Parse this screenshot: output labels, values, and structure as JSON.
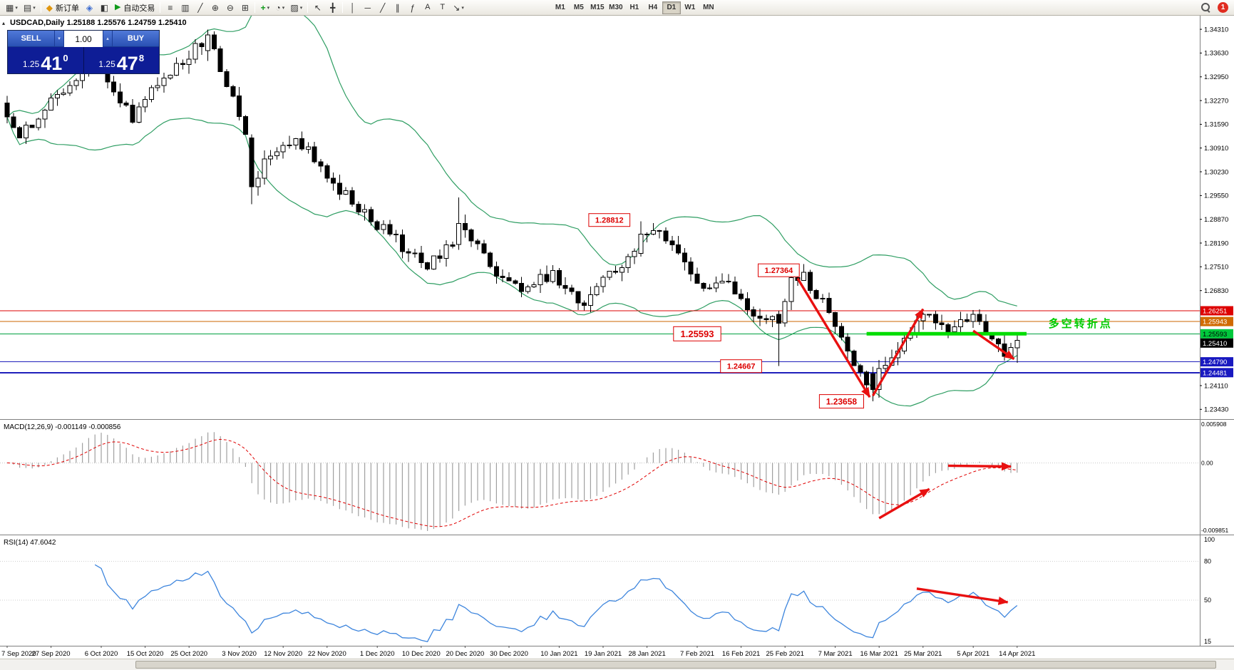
{
  "toolbar": {
    "new_order_label": "新订单",
    "autotrading_label": "自动交易",
    "timeframes": [
      "M1",
      "M5",
      "M15",
      "M30",
      "H1",
      "H4",
      "D1",
      "W1",
      "MN"
    ],
    "active_timeframe": "D1",
    "notification_count": "1",
    "icon_glyphs": {
      "new_chart": "▦",
      "caret": "▾",
      "caret_up": "▴",
      "profile": "▤",
      "market_watch": "◧",
      "new_order": "◆",
      "expert": "◈",
      "play": "▶",
      "bars": "≡",
      "candles": "▥",
      "line_chart": "╱",
      "zoom_in": "⊕",
      "zoom_out": "⊖",
      "tile": "⊞",
      "indicators": "+",
      "clock": "◔",
      "template": "▨",
      "cursor": "↖",
      "crosshair": "╋",
      "vline": "│",
      "hline": "─",
      "trend": "╱",
      "channel": "∥",
      "fib": "ƒ",
      "text": "A",
      "label": "T",
      "arrow": "↘"
    }
  },
  "chart": {
    "symbol_line": "USDCAD,Daily 1.25188 1.25576 1.24759 1.25410",
    "trade_panel": {
      "sell_label": "SELL",
      "buy_label": "BUY",
      "volume": "1.00",
      "sell": {
        "base": "1.25",
        "big": "41",
        "sup": "0"
      },
      "buy": {
        "base": "1.25",
        "big": "47",
        "sup": "8"
      }
    }
  },
  "chart_data": {
    "type": "candlestick",
    "symbol": "USDCAD",
    "period": "Daily",
    "last_ohlc": {
      "open": "1.25188",
      "high": "1.25576",
      "low": "1.24759",
      "close": "1.25410"
    },
    "bollinger_color": "#2f9e63",
    "arrow_color": "#e81010",
    "price_axis": {
      "ticks": [
        "1.34310",
        "1.33630",
        "1.32950",
        "1.32270",
        "1.31590",
        "1.30910",
        "1.30230",
        "1.29550",
        "1.28870",
        "1.28190",
        "1.27510",
        "1.26830",
        "1.24110",
        "1.23430"
      ],
      "markers": [
        {
          "value": "1.26251",
          "bg": "#dd0000",
          "fg": "#ffffff"
        },
        {
          "value": "1.25943",
          "bg": "#d06a00",
          "fg": "#ffffff"
        },
        {
          "value": "1.25593",
          "bg": "#00c83c",
          "fg": "#000000"
        },
        {
          "value": "1.25410",
          "bg": "#000000",
          "fg": "#ffffff"
        },
        {
          "value": "1.24790",
          "bg": "#1818c0",
          "fg": "#ffffff"
        },
        {
          "value": "1.24481",
          "bg": "#1818c0",
          "fg": "#ffffff"
        }
      ]
    },
    "dates": [
      [
        "7 Sep 2020",
        0
      ],
      [
        "27 Sep 2020",
        7
      ],
      [
        "6 Oct 2020",
        15
      ],
      [
        "15 Oct 2020",
        22
      ],
      [
        "25 Oct 2020",
        29
      ],
      [
        "3 Nov 2020",
        37
      ],
      [
        "12 Nov 2020",
        44
      ],
      [
        "22 Nov 2020",
        51
      ],
      [
        "1 Dec 2020",
        59
      ],
      [
        "10 Dec 2020",
        66
      ],
      [
        "20 Dec 2020",
        73
      ],
      [
        "30 Dec 2020",
        80
      ],
      [
        "10 Jan 2021",
        88
      ],
      [
        "19 Jan 2021",
        95
      ],
      [
        "28 Jan 2021",
        102
      ],
      [
        "7 Feb 2021",
        110
      ],
      [
        "16 Feb 2021",
        117
      ],
      [
        "25 Feb 2021",
        124
      ],
      [
        "7 Mar 2021",
        132
      ],
      [
        "16 Mar 2021",
        139
      ],
      [
        "25 Mar 2021",
        146
      ],
      [
        "5 Apr 2021",
        154
      ],
      [
        "14 Apr 2021",
        161
      ]
    ],
    "candles": {
      "count": 162,
      "anchors": [
        [
          0,
          1.318
        ],
        [
          2,
          1.312
        ],
        [
          4,
          1.315
        ],
        [
          6,
          1.32
        ],
        [
          8,
          1.3245
        ],
        [
          10,
          1.327
        ],
        [
          12,
          1.332
        ],
        [
          14,
          1.3345
        ],
        [
          16,
          1.328
        ],
        [
          18,
          1.322
        ],
        [
          20,
          1.3165
        ],
        [
          22,
          1.323
        ],
        [
          24,
          1.327
        ],
        [
          26,
          1.33
        ],
        [
          28,
          1.333
        ],
        [
          30,
          1.339
        ],
        [
          32,
          1.3415
        ],
        [
          34,
          1.331
        ],
        [
          36,
          1.324
        ],
        [
          38,
          1.313
        ],
        [
          39,
          1.298
        ],
        [
          41,
          1.306
        ],
        [
          43,
          1.308
        ],
        [
          45,
          1.31
        ],
        [
          48,
          1.3095
        ],
        [
          50,
          1.304
        ],
        [
          52,
          1.299
        ],
        [
          55,
          1.293
        ],
        [
          58,
          1.288
        ],
        [
          61,
          1.2845
        ],
        [
          64,
          1.279
        ],
        [
          67,
          1.2745
        ],
        [
          69,
          1.2775
        ],
        [
          71,
          1.281
        ],
        [
          72,
          1.2875
        ],
        [
          74,
          1.2825
        ],
        [
          76,
          1.279
        ],
        [
          79,
          1.272
        ],
        [
          82,
          1.268
        ],
        [
          84,
          1.27
        ],
        [
          87,
          1.274
        ],
        [
          89,
          1.269
        ],
        [
          92,
          1.264
        ],
        [
          94,
          1.2695
        ],
        [
          97,
          1.2735
        ],
        [
          99,
          1.278
        ],
        [
          101,
          1.2845
        ],
        [
          103,
          1.2855
        ],
        [
          105,
          1.2825
        ],
        [
          107,
          1.279
        ],
        [
          109,
          1.273
        ],
        [
          112,
          1.269
        ],
        [
          114,
          1.271
        ],
        [
          117,
          1.266
        ],
        [
          119,
          1.261
        ],
        [
          121,
          1.26
        ],
        [
          123,
          1.259
        ],
        [
          125,
          1.272
        ],
        [
          127,
          1.2735
        ],
        [
          129,
          1.266
        ],
        [
          131,
          1.262
        ],
        [
          132,
          1.258
        ],
        [
          134,
          1.251
        ],
        [
          136,
          1.245
        ],
        [
          138,
          1.24
        ],
        [
          139,
          1.246
        ],
        [
          141,
          1.249
        ],
        [
          142,
          1.251
        ],
        [
          144,
          1.256
        ],
        [
          146,
          1.2615
        ],
        [
          148,
          1.259
        ],
        [
          150,
          1.2565
        ],
        [
          152,
          1.26
        ],
        [
          154,
          1.2615
        ],
        [
          156,
          1.256
        ],
        [
          158,
          1.253
        ],
        [
          159,
          1.2495
        ],
        [
          160,
          1.252
        ],
        [
          161,
          1.2541
        ]
      ],
      "overrides": {
        "32": [
          1.337,
          1.343,
          1.334,
          1.3415
        ],
        "39": [
          1.312,
          1.313,
          1.293,
          1.298
        ],
        "72": [
          1.2815,
          1.295,
          1.28,
          1.2875
        ],
        "101": [
          1.279,
          1.28812,
          1.278,
          1.2845
        ],
        "123": [
          1.2615,
          1.2625,
          1.24667,
          1.259
        ],
        "138": [
          1.2445,
          1.2465,
          1.23658,
          1.24
        ],
        "161": [
          1.25188,
          1.25576,
          1.24759,
          1.2541
        ]
      }
    },
    "hlines": [
      {
        "price": 1.26251,
        "color": "#dd0000",
        "width": 1
      },
      {
        "price": 1.25943,
        "color": "#cc6600",
        "width": 1
      },
      {
        "price": 1.25593,
        "color": "#00a040",
        "width": 1
      },
      {
        "price": 1.2479,
        "color": "#2020bb",
        "width": 1
      },
      {
        "price": 1.24481,
        "color": "#2020bb",
        "width": 2
      }
    ],
    "green_segment": {
      "i1": 137,
      "i2": 162.5,
      "price": 1.25593,
      "color": "#00dd00",
      "width": 5
    },
    "annotations": [
      {
        "text": "1.28812",
        "i": 96,
        "price": 1.2885,
        "size": 11,
        "bold": true
      },
      {
        "text": "1.27364",
        "i": 123,
        "price": 1.2741,
        "size": 11,
        "bold": true
      },
      {
        "text": "1.25593",
        "i": 110,
        "price": 1.25593,
        "size": 13,
        "bold": true
      },
      {
        "text": "1.24667",
        "i": 117,
        "price": 1.24667,
        "size": 11,
        "bold": true
      },
      {
        "text": "1.23658",
        "i": 133,
        "price": 1.23658,
        "size": 12,
        "bold": true
      },
      {
        "text": "多空转折点",
        "i": 166,
        "price": 1.2588,
        "size": 15,
        "plain": true,
        "color": "#00cc00"
      }
    ],
    "arrows": [
      {
        "pane": "main",
        "i1": 126,
        "v1": 1.2718,
        "i2": 137.5,
        "v2": 1.2378
      },
      {
        "pane": "main",
        "i1": 138,
        "v1": 1.2382,
        "i2": 146,
        "v2": 1.263
      },
      {
        "pane": "main",
        "i1": 154,
        "v1": 1.2568,
        "i2": 160.5,
        "v2": 1.2487
      },
      {
        "pane": "macd",
        "i1": 139,
        "v1": -0.0076,
        "i2": 147,
        "v2": -0.0036
      },
      {
        "pane": "macd",
        "i1": 150,
        "v1": -0.0004,
        "i2": 160,
        "v2": -0.0005
      },
      {
        "pane": "rsi",
        "i1": 145,
        "v1": 59,
        "i2": 159.5,
        "v2": 48.5
      }
    ],
    "macd": {
      "label": "MACD(12,26,9) -0.001149 -0.000856",
      "axis": [
        {
          "t": "0.005908",
          "v": 0.005908
        },
        {
          "t": "0.00",
          "v": 0
        },
        {
          "t": "-0.009851",
          "v": -0.009851
        }
      ],
      "histogram_color": "#a0a0a0",
      "signal_color": "#e00000"
    },
    "rsi": {
      "label": "RSI(14) 47.6042",
      "axis": [
        {
          "t": "100",
          "v": 100
        },
        {
          "t": "80",
          "v": 80
        },
        {
          "t": "50",
          "v": 50
        },
        {
          "t": "15",
          "v": 15
        }
      ],
      "levels": [
        80,
        50
      ],
      "line_color": "#3d85dd"
    }
  }
}
